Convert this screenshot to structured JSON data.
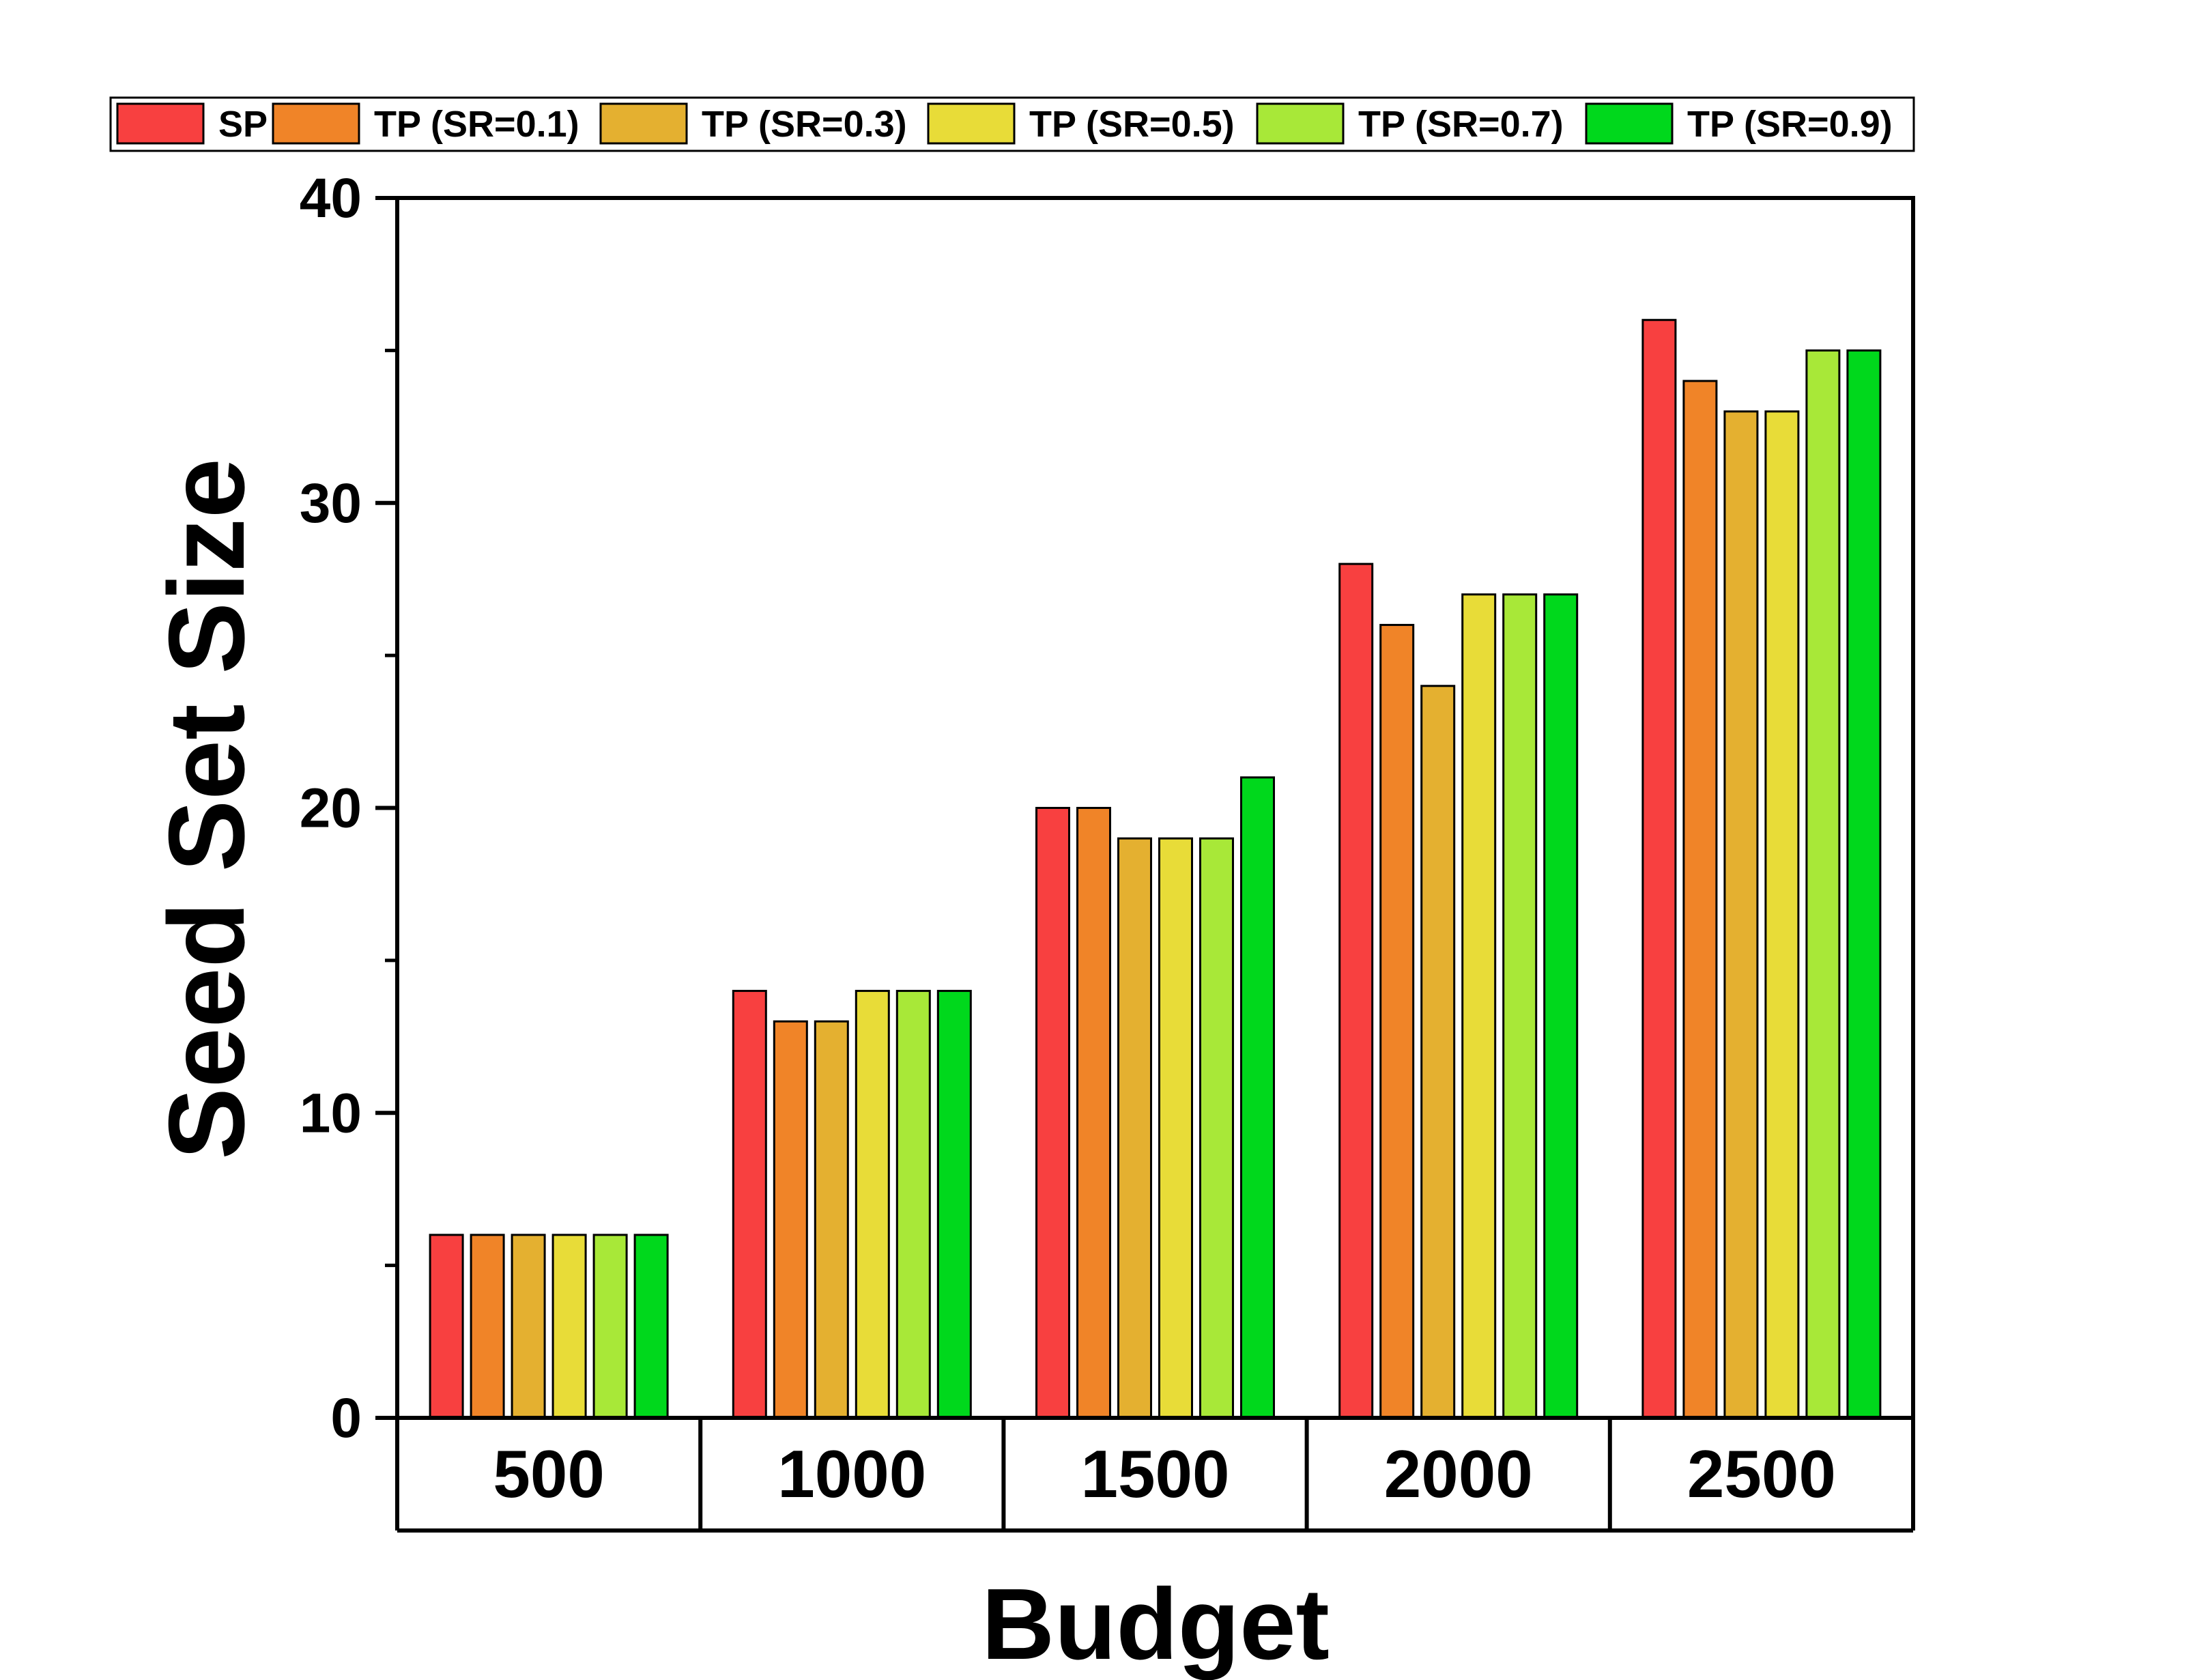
{
  "chart_data": {
    "type": "bar",
    "xlabel": "Budget",
    "ylabel": "Seed Set Size",
    "categories": [
      "500",
      "1000",
      "1500",
      "2000",
      "2500"
    ],
    "ylim": [
      0,
      40
    ],
    "yticks": [
      "0",
      "10",
      "20",
      "30",
      "40"
    ],
    "legend_position": "top",
    "grid": false,
    "series": [
      {
        "name": "SP",
        "color": "#f84040",
        "values": [
          6,
          14,
          20,
          28,
          36
        ]
      },
      {
        "name": "TP (SR=0.1)",
        "color": "#f08428",
        "values": [
          6,
          13,
          20,
          26,
          34
        ]
      },
      {
        "name": "TP (SR=0.3)",
        "color": "#e4b030",
        "values": [
          6,
          13,
          19,
          24,
          33
        ]
      },
      {
        "name": "TP (SR=0.5)",
        "color": "#e8dc38",
        "values": [
          6,
          14,
          19,
          27,
          33
        ]
      },
      {
        "name": "TP (SR=0.7)",
        "color": "#a8e838",
        "values": [
          6,
          14,
          19,
          27,
          35
        ]
      },
      {
        "name": "TP (SR=0.9)",
        "color": "#00d81c",
        "values": [
          6,
          14,
          21,
          27,
          35
        ]
      }
    ]
  }
}
